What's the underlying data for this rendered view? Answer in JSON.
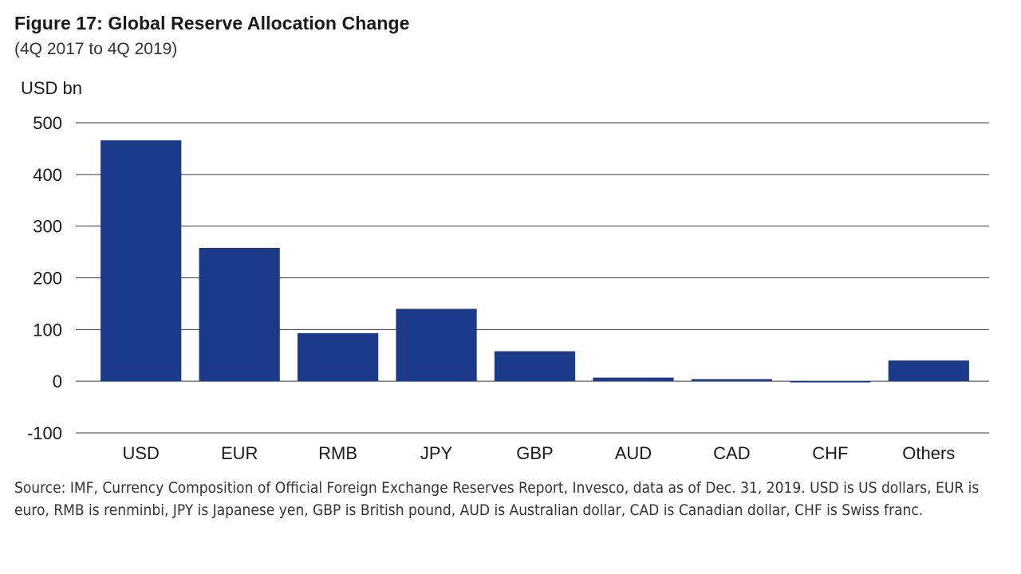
{
  "chart_data": {
    "type": "bar",
    "title": "Figure 17:  Global Reserve Allocation Change",
    "subtitle": "(4Q 2017 to 4Q 2019)",
    "ylabel": "USD bn",
    "xlabel": "",
    "categories": [
      "USD",
      "EUR",
      "RMB",
      "JPY",
      "GBP",
      "AUD",
      "CAD",
      "CHF",
      "Others"
    ],
    "values": [
      466,
      258,
      93,
      140,
      58,
      7,
      4,
      -2,
      40
    ],
    "ylim": [
      -100,
      500
    ],
    "yticks": [
      500,
      400,
      300,
      200,
      100,
      0,
      -100
    ],
    "ytick_labels": [
      "500",
      "400",
      "300",
      "200",
      "100",
      "0",
      "-100"
    ],
    "grid": true,
    "bar_color": "#1c3a8a",
    "grid_color": "#3a3a3a"
  },
  "source": "Source: IMF, Currency Composition of Official Foreign Exchange Reserves Report, Invesco, data as of Dec. 31, 2019. USD is US dollars, EUR is euro, RMB is renminbi, JPY is Japanese yen, GBP is British pound, AUD is Australian dollar, CAD is Canadian dollar, CHF is Swiss franc."
}
